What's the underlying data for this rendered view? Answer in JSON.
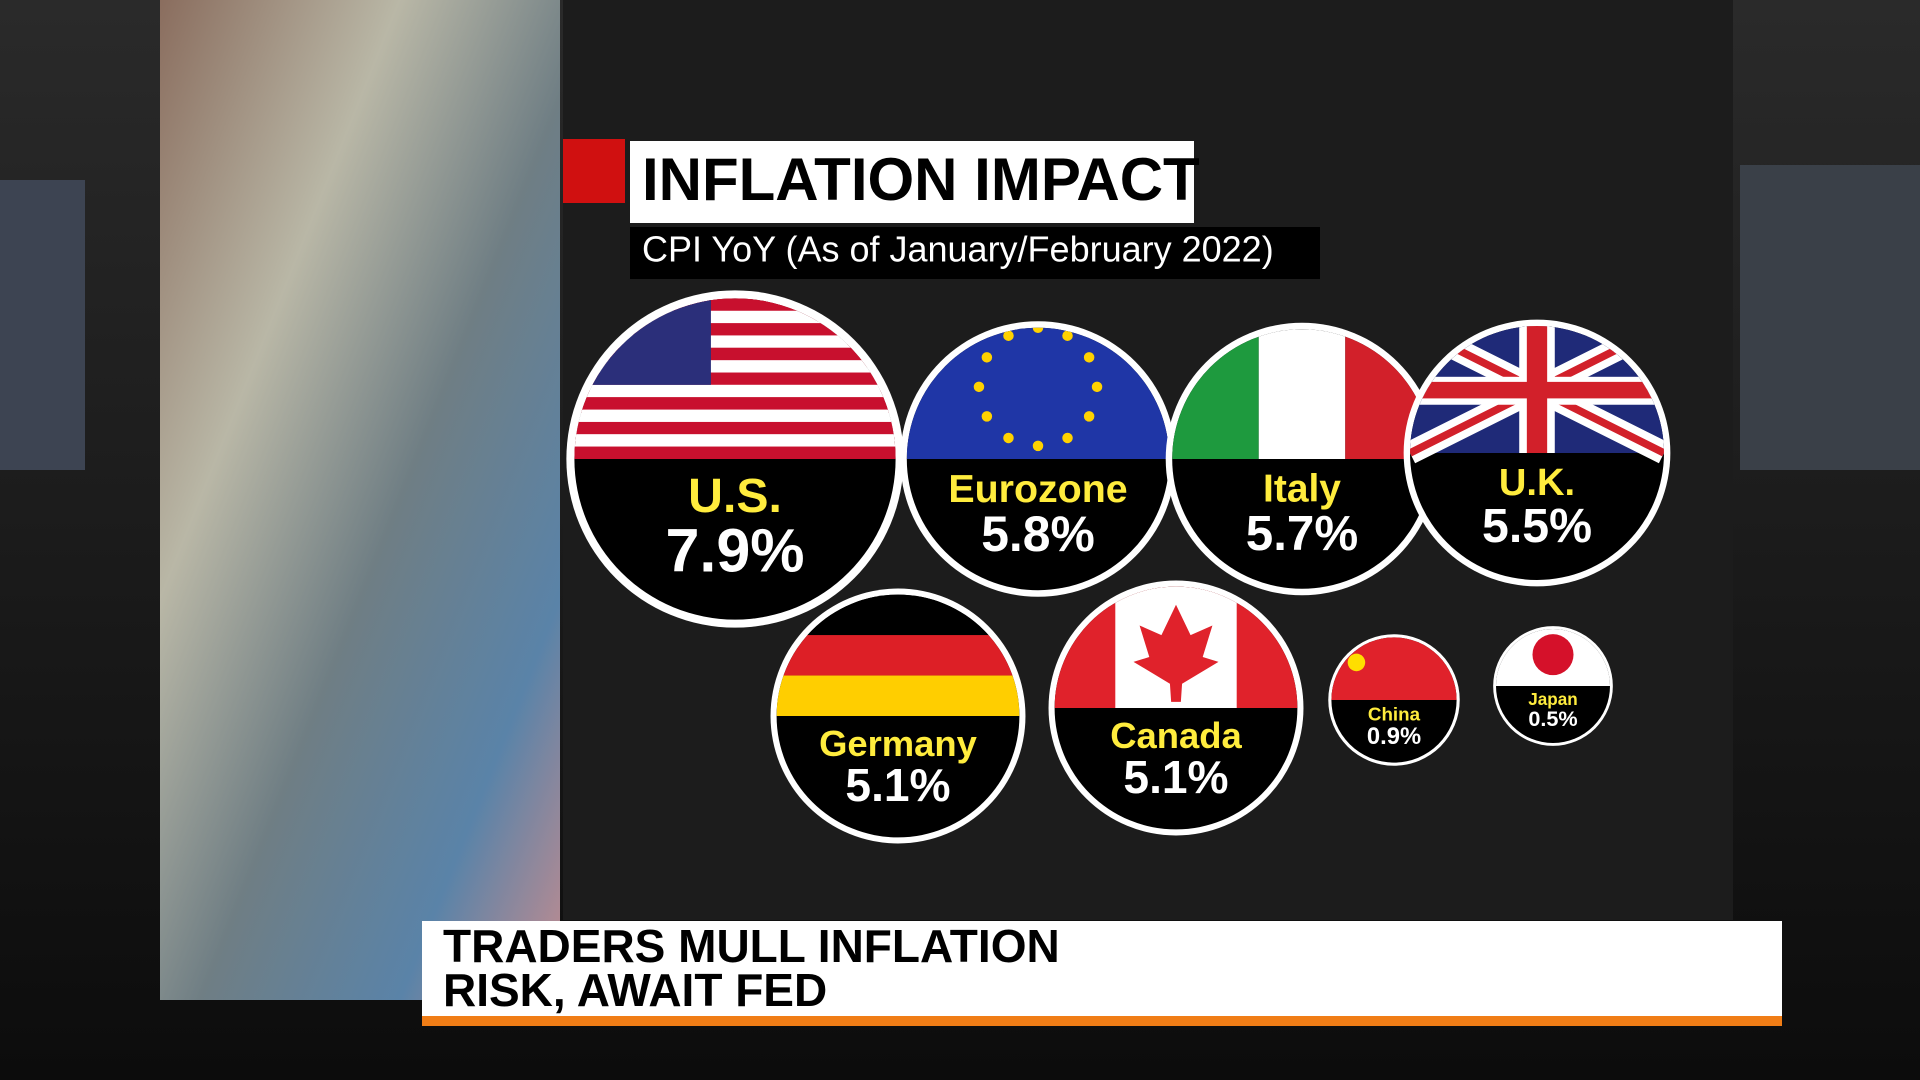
{
  "chart_data": {
    "type": "bubble",
    "title": "INFLATION IMPACT",
    "subtitle": "CPI YoY (As of January/February 2022)",
    "categories": [
      "U.S.",
      "Eurozone",
      "Italy",
      "U.K.",
      "Germany",
      "Canada",
      "China",
      "Japan"
    ],
    "values": [
      7.9,
      5.8,
      5.7,
      5.5,
      5.1,
      5.1,
      0.9,
      0.5
    ],
    "value_labels": [
      "7.9%",
      "5.8%",
      "5.7%",
      "5.5%",
      "5.1%",
      "5.1%",
      "0.9%",
      "0.5%"
    ]
  },
  "banner": {
    "lines": [
      "TRADERS MULL INFLATION",
      "RISK, AWAIT FED"
    ]
  }
}
